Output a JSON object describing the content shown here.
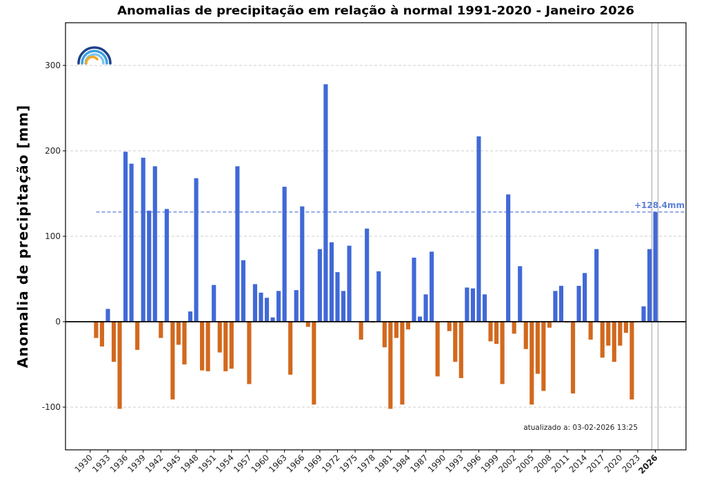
{
  "chart_data": {
    "type": "bar",
    "title": "Anomalias de precipitação em relação à normal 1991-2020 - Janeiro 2026",
    "ylabel": "Anomalia de precipitação [mm]",
    "xlabel": "",
    "ylim": [
      -150,
      350
    ],
    "xlim": [
      1925.8,
      2031.2
    ],
    "yticks": [
      -100,
      0,
      100,
      200,
      300
    ],
    "xticks": [
      1930,
      1933,
      1936,
      1939,
      1942,
      1945,
      1948,
      1951,
      1954,
      1957,
      1960,
      1963,
      1966,
      1969,
      1972,
      1975,
      1978,
      1981,
      1984,
      1987,
      1990,
      1993,
      1996,
      1999,
      2002,
      2005,
      2008,
      2011,
      2014,
      2017,
      2020,
      2023,
      2026
    ],
    "highlight_tick": 2026,
    "grid": "horizontal dashed",
    "colors": {
      "positive": "#4169d6",
      "negative": "#d2691e",
      "reference": "#5b7fd6",
      "highlight_lines": "#bbbbbb"
    },
    "years": [
      1931,
      1932,
      1933,
      1934,
      1935,
      1936,
      1937,
      1938,
      1939,
      1940,
      1941,
      1942,
      1943,
      1944,
      1945,
      1946,
      1947,
      1948,
      1949,
      1950,
      1951,
      1952,
      1953,
      1954,
      1955,
      1956,
      1957,
      1958,
      1959,
      1960,
      1961,
      1962,
      1963,
      1964,
      1965,
      1966,
      1967,
      1968,
      1969,
      1970,
      1971,
      1972,
      1973,
      1974,
      1975,
      1976,
      1977,
      1978,
      1979,
      1980,
      1981,
      1982,
      1983,
      1984,
      1985,
      1986,
      1987,
      1988,
      1989,
      1990,
      1991,
      1992,
      1993,
      1994,
      1995,
      1996,
      1997,
      1998,
      1999,
      2000,
      2001,
      2002,
      2003,
      2004,
      2005,
      2006,
      2007,
      2008,
      2009,
      2010,
      2011,
      2012,
      2013,
      2014,
      2015,
      2016,
      2017,
      2018,
      2019,
      2020,
      2021,
      2022,
      2023,
      2024,
      2025,
      2026
    ],
    "values": [
      -19,
      -29,
      15,
      -47,
      -102,
      199,
      185,
      -33,
      192,
      130,
      182,
      -19,
      132,
      -91,
      -27,
      -50,
      12,
      168,
      -57,
      -58,
      43,
      -36,
      -58,
      -55,
      182,
      72,
      -73,
      44,
      34,
      28,
      5,
      36,
      158,
      -62,
      37,
      135,
      -6,
      -97,
      85,
      278,
      93,
      58,
      36,
      89,
      0,
      -21,
      109,
      -1,
      59,
      -30,
      -102,
      -19,
      -97,
      -9,
      75,
      6,
      32,
      82,
      -64,
      0,
      -11,
      -47,
      -66,
      40,
      39,
      217,
      32,
      -23,
      -26,
      -73,
      149,
      -14,
      65,
      -32,
      -97,
      -61,
      -81,
      -7,
      36,
      42,
      -1,
      -84,
      42,
      57,
      -21,
      85,
      -42,
      -28,
      -47,
      -28,
      -13,
      -91,
      0,
      18,
      85,
      128.4
    ],
    "reference_value": 128.4,
    "reference_label": "+128.4mm",
    "annotation": "atualizado a: 03-02-2026 13:25",
    "logo": "rainbow-arcs-logo"
  }
}
